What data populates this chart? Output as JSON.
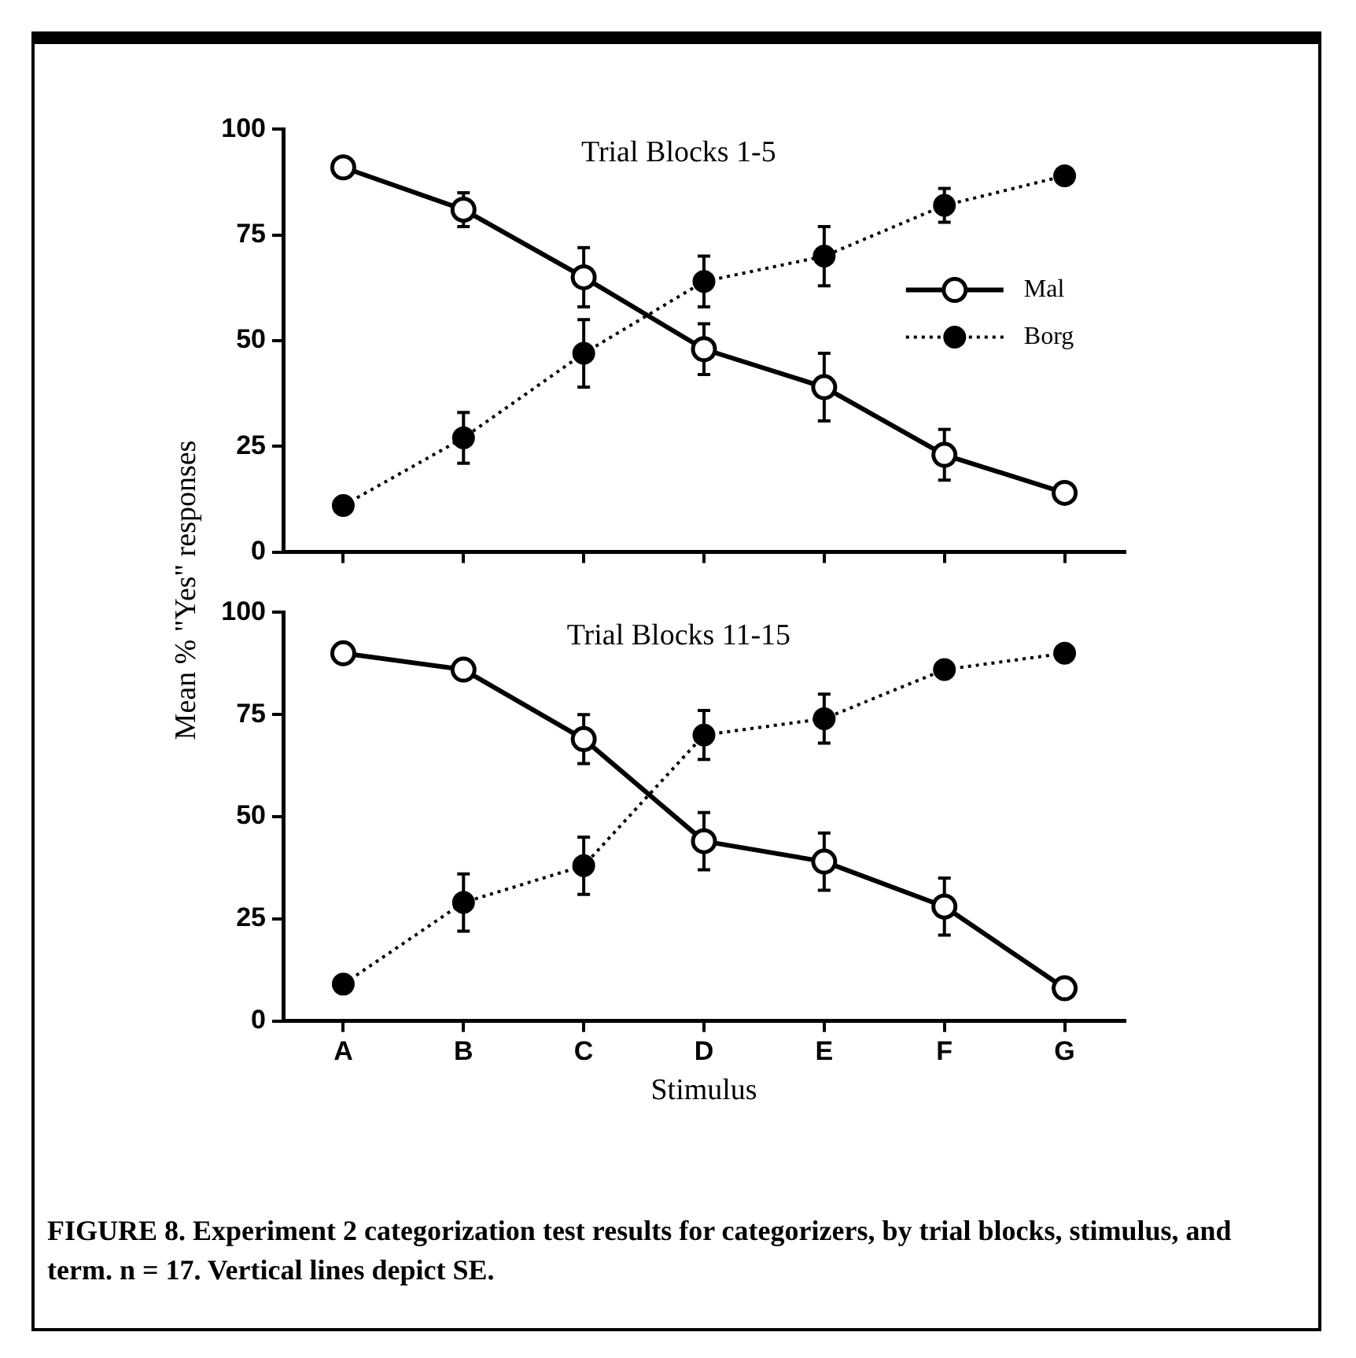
{
  "chart_data": [
    {
      "type": "line",
      "title": "Trial Blocks 1-5",
      "ylabel": "Mean % \"Yes\" responses",
      "categories": [
        null,
        null,
        null,
        null,
        null,
        null,
        null
      ],
      "series": [
        {
          "name": "Mal",
          "color": "#000000",
          "line_style": "solid",
          "values": [
            91,
            81,
            65,
            48,
            39,
            23,
            14
          ],
          "errors": [
            null,
            4,
            7,
            6,
            8,
            6,
            null
          ]
        },
        {
          "name": "Borg",
          "color": "#000000",
          "line_style": "dotted",
          "values": [
            11,
            27,
            47,
            64,
            70,
            82,
            89
          ],
          "errors": [
            null,
            6,
            8,
            6,
            7,
            4,
            null
          ]
        }
      ],
      "ylim": [
        0,
        100
      ],
      "yticks": [
        0,
        25,
        50,
        75,
        100
      ],
      "grid": false,
      "legend": "right",
      "marker": "circle",
      "tick_labels": "y"
    },
    {
      "type": "line",
      "title": "Trial Blocks 11-15",
      "xlabel": "Stimulus",
      "categories": [
        "A",
        "B",
        "C",
        "D",
        "E",
        "F",
        "G"
      ],
      "series": [
        {
          "color": "#000000",
          "line_style": "solid",
          "values": [
            90,
            86,
            69,
            44,
            39,
            28,
            8
          ],
          "errors": [
            null,
            null,
            6,
            7,
            7,
            7,
            null
          ]
        },
        {
          "color": "#000000",
          "line_style": "dotted",
          "values": [
            9,
            29,
            38,
            70,
            74,
            86,
            90
          ],
          "errors": [
            null,
            7,
            7,
            6,
            6,
            null,
            null
          ]
        }
      ],
      "ylim": [
        0,
        100
      ],
      "yticks": [
        0,
        25,
        50,
        75,
        100
      ],
      "grid": false,
      "legend": false,
      "marker": "circle",
      "annotations": [
        "FIGURE 8. Experiment 2 categorization test results for categorizers, by trial blocks, stimulus, and term. n = 17. Vertical lines depict SE."
      ]
    }
  ]
}
